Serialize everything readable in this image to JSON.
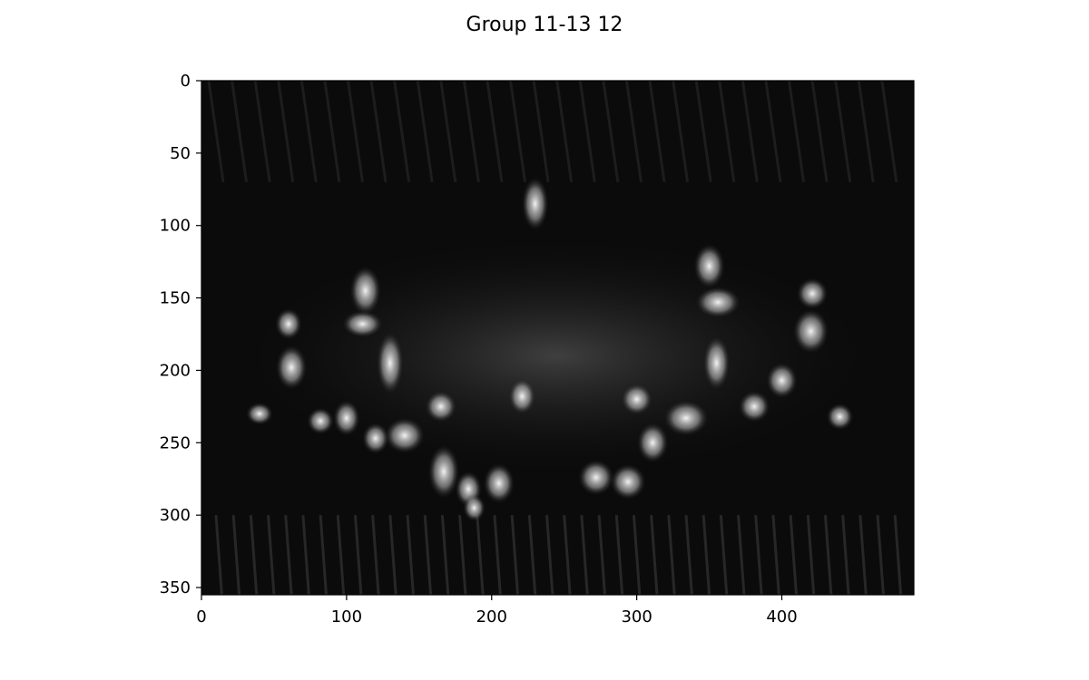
{
  "chart_data": {
    "type": "heatmap",
    "title": "Group 11-13 12",
    "xlabel": "",
    "ylabel": "",
    "colormap": "gray",
    "image_width": 491,
    "image_height": 355,
    "xlim": [
      0,
      491
    ],
    "ylim": [
      355,
      0
    ],
    "x_ticks": [
      0,
      100,
      200,
      300,
      400
    ],
    "x_tick_labels": [
      "0",
      "100",
      "200",
      "300",
      "400"
    ],
    "y_ticks": [
      0,
      50,
      100,
      150,
      200,
      250,
      300,
      350
    ],
    "y_tick_labels": [
      "0",
      "50",
      "100",
      "150",
      "200",
      "250",
      "300",
      "350"
    ],
    "grid": false,
    "description_of_content": "grayscale filter response magnitude map of a butterfly shape; bright spots along wing patterns"
  }
}
